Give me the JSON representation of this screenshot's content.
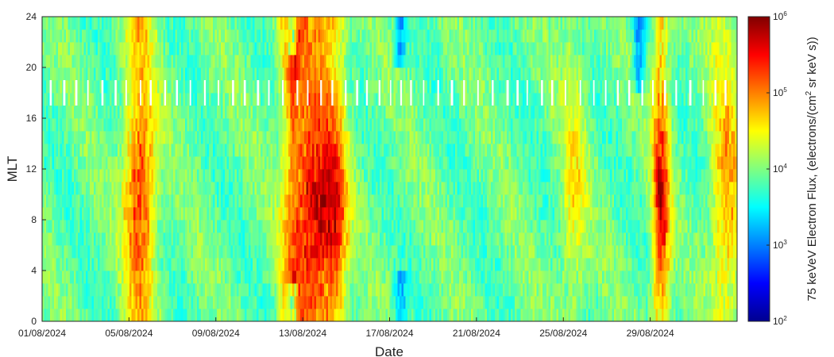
{
  "chart_data": {
    "type": "heatmap",
    "xlabel": "Date",
    "ylabel": "MLT",
    "x_range": [
      "01/08/2024",
      "02/09/2024"
    ],
    "x_ticks": [
      "01/08/2024",
      "05/08/2024",
      "09/08/2024",
      "13/08/2024",
      "17/08/2024",
      "21/08/2024",
      "25/08/2024",
      "29/08/2024"
    ],
    "y_range": [
      0,
      24
    ],
    "y_ticks": [
      "0",
      "4",
      "8",
      "12",
      "16",
      "20",
      "24"
    ],
    "colorbar": {
      "label_main": "75 keVeV Electron Flux, (electrons/(cm",
      "label_sup": "2",
      "label_end": " sr keV s))",
      "scale": "log",
      "range": [
        100,
        1000000
      ],
      "tick_base": "10",
      "tick_exponents": [
        "2",
        "3",
        "4",
        "5",
        "6"
      ],
      "colormap": "jet"
    },
    "data_gap_band_mlt": [
      17,
      19
    ],
    "activity_events": [
      {
        "center": "05/08/2024",
        "width_days": 0.7,
        "mlt_peak": 10,
        "peak_log_flux": 5.4
      },
      {
        "center": "12/08/2024",
        "width_days": 0.5,
        "mlt_peak": 22,
        "peak_log_flux": 5.2
      },
      {
        "center": "13/08/2024",
        "width_days": 0.9,
        "mlt_peak": 9,
        "peak_log_flux": 5.7
      },
      {
        "center": "14/08/2024",
        "width_days": 0.6,
        "mlt_peak": 8,
        "peak_log_flux": 5.1
      },
      {
        "center": "25/08/2024",
        "width_days": 0.6,
        "mlt_peak": 10,
        "peak_log_flux": 4.5
      },
      {
        "center": "29/08/2024",
        "width_days": 0.4,
        "mlt_peak": 9,
        "peak_log_flux": 5.6
      },
      {
        "center": "01/09/2024",
        "width_days": 0.7,
        "mlt_peak": 10,
        "peak_log_flux": 4.9
      }
    ],
    "low_flux_events": [
      {
        "center": "12/08/2024",
        "mlt_ranges": [
          [
            0,
            3
          ],
          [
            21,
            24
          ]
        ],
        "min_log_flux": 2.3
      },
      {
        "center": "17/08/2024",
        "mlt_ranges": [
          [
            0,
            4
          ],
          [
            20,
            24
          ]
        ],
        "min_log_flux": 3.0
      },
      {
        "center": "28/08/2024",
        "mlt_ranges": [
          [
            18,
            24
          ]
        ],
        "min_log_flux": 2.8
      }
    ],
    "background_log_flux": 3.9,
    "grid": false
  }
}
